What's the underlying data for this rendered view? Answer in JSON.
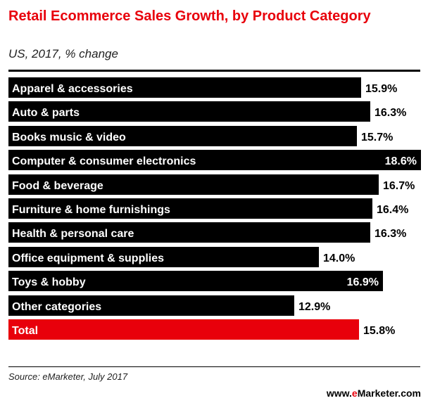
{
  "header": {
    "title": "Retail Ecommerce Sales Growth, by Product Category",
    "subtitle": "US, 2017, % change"
  },
  "footer": {
    "source": "Source: eMarketer, July 2017",
    "brand_prefix": "www.",
    "brand_e": "e",
    "brand_rest": "Marketer.com"
  },
  "colors": {
    "bar": "#000000",
    "highlight": "#e8000b",
    "title": "#e8000b"
  },
  "chart_data": {
    "type": "bar",
    "orientation": "horizontal",
    "title": "Retail Ecommerce Sales Growth, by Product Category",
    "subtitle": "US, 2017, % change",
    "categories": [
      "Apparel & accessories",
      "Auto & parts",
      "Books music & video",
      "Computer & consumer electronics",
      "Food & beverage",
      "Furniture & home furnishings",
      "Health & personal care",
      "Office equipment & supplies",
      "Toys & hobby",
      "Other categories",
      "Total"
    ],
    "values": [
      15.9,
      16.3,
      15.7,
      18.6,
      16.7,
      16.4,
      16.3,
      14.0,
      16.9,
      12.9,
      15.8
    ],
    "value_labels": [
      "15.9%",
      "16.3%",
      "15.7%",
      "18.6%",
      "16.7%",
      "16.4%",
      "16.3%",
      "14.0%",
      "16.9%",
      "12.9%",
      "15.8%"
    ],
    "highlight_index": 10,
    "xlim": [
      0,
      18.6
    ],
    "grid": false
  }
}
